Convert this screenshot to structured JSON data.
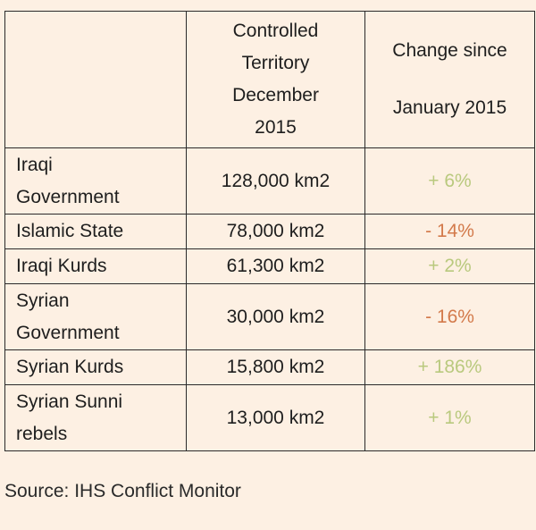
{
  "table": {
    "header": {
      "col1": "",
      "col2_lines": [
        "Controlled",
        "Territory",
        "December",
        "2015"
      ],
      "col3_lines": [
        "Change since",
        "January 2015"
      ]
    },
    "rows": [
      {
        "name_lines": [
          "Iraqi",
          "Government"
        ],
        "area": "128,000 km2",
        "change": "+ 6%",
        "trend": "up"
      },
      {
        "name_lines": [
          "Islamic State"
        ],
        "area": "78,000 km2",
        "change": "- 14%",
        "trend": "down"
      },
      {
        "name_lines": [
          "Iraqi Kurds"
        ],
        "area": "61,300 km2",
        "change": "+ 2%",
        "trend": "up"
      },
      {
        "name_lines": [
          "Syrian",
          "Government"
        ],
        "area": "30,000 km2",
        "change": "- 16%",
        "trend": "down"
      },
      {
        "name_lines": [
          "Syrian Kurds"
        ],
        "area": "15,800 km2",
        "change": "+ 186%",
        "trend": "up"
      },
      {
        "name_lines": [
          "Syrian Sunni",
          "rebels"
        ],
        "area": "13,000 km2",
        "change": "+ 1%",
        "trend": "up"
      }
    ]
  },
  "source": "Source: IHS Conflict Monitor",
  "colors": {
    "background": "#fdf0e3",
    "positive": "#b9c97e",
    "negative": "#d37a4b",
    "border": "#2a2a2a"
  }
}
